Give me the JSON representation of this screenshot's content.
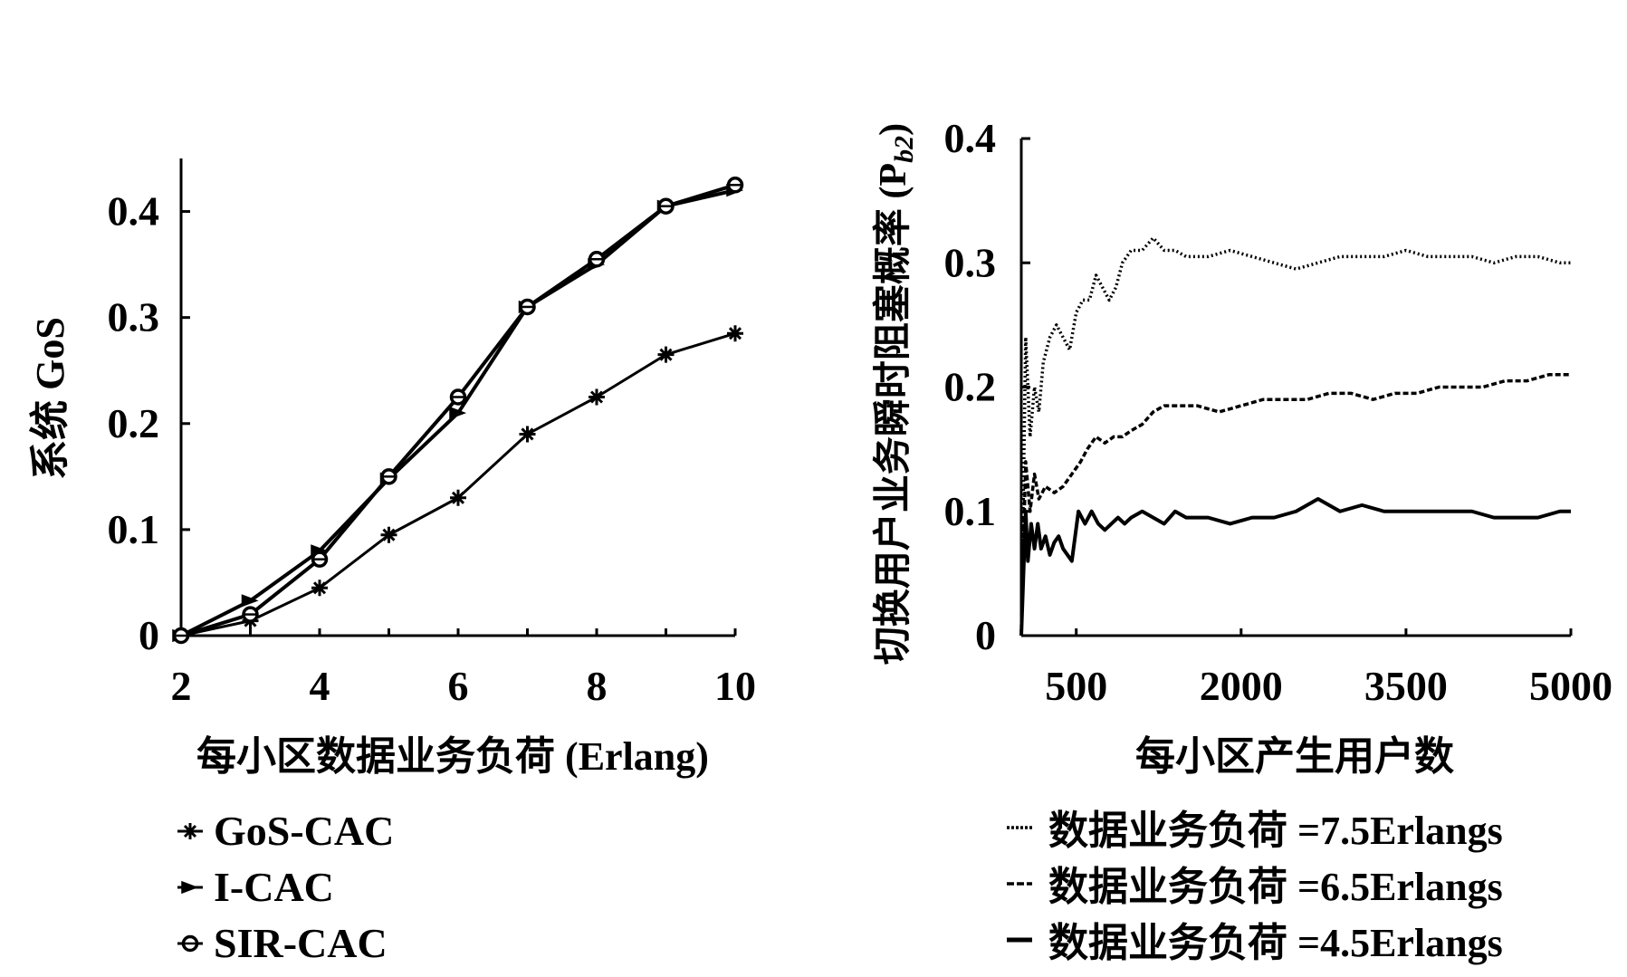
{
  "chart_data": [
    {
      "type": "line",
      "title": "",
      "xlabel": "每小区数据业务负荷 (Erlang)",
      "ylabel": "系统 GoS",
      "x": [
        2,
        3,
        4,
        5,
        6,
        7,
        8,
        9,
        10
      ],
      "xticks": [
        2,
        4,
        6,
        8,
        10
      ],
      "xtick_labels": [
        "2",
        "4",
        "6",
        "8",
        "10"
      ],
      "yticks": [
        0,
        0.1,
        0.2,
        0.3,
        0.4
      ],
      "ytick_labels": [
        "0",
        "0.1",
        "0.2",
        "0.3",
        "0.4"
      ],
      "xlim": [
        2,
        10
      ],
      "ylim": [
        0,
        0.45
      ],
      "grid": false,
      "legend": "bottom",
      "series": [
        {
          "name": "GoS-CAC",
          "marker": "star",
          "values": [
            0,
            0.014,
            0.045,
            0.095,
            0.13,
            0.19,
            0.225,
            0.265,
            0.285
          ]
        },
        {
          "name": "I-CAC",
          "marker": "arrow",
          "values": [
            0,
            0.033,
            0.08,
            0.148,
            0.21,
            0.31,
            0.35,
            0.405,
            0.42
          ]
        },
        {
          "name": "SIR-CAC",
          "marker": "circle",
          "values": [
            0,
            0.02,
            0.072,
            0.15,
            0.225,
            0.31,
            0.355,
            0.405,
            0.425
          ]
        }
      ]
    },
    {
      "type": "line",
      "title": "",
      "xlabel": "每小区产生用户数",
      "ylabel": "切换用户业务瞬时阻塞概率 (P",
      "ylabel_sub": "b2",
      "ylabel_close": ")",
      "xticks": [
        500,
        2000,
        3500,
        5000
      ],
      "xtick_labels": [
        "500",
        "2000",
        "3500",
        "5000"
      ],
      "yticks": [
        0,
        0.1,
        0.2,
        0.3,
        0.4
      ],
      "ytick_labels": [
        "0",
        "0.1",
        "0.2",
        "0.3",
        "0.4"
      ],
      "xlim": [
        0,
        5000
      ],
      "ylim": [
        0,
        0.4
      ],
      "grid": false,
      "legend": "bottom",
      "series": [
        {
          "name": "数据业务负荷 =7.5Erlangs",
          "style": "dotted",
          "points": [
            [
              0,
              0
            ],
            [
              40,
              0.24
            ],
            [
              80,
              0.16
            ],
            [
              120,
              0.2
            ],
            [
              160,
              0.18
            ],
            [
              200,
              0.22
            ],
            [
              260,
              0.24
            ],
            [
              320,
              0.25
            ],
            [
              380,
              0.24
            ],
            [
              440,
              0.23
            ],
            [
              500,
              0.26
            ],
            [
              560,
              0.27
            ],
            [
              620,
              0.27
            ],
            [
              680,
              0.29
            ],
            [
              740,
              0.28
            ],
            [
              800,
              0.27
            ],
            [
              860,
              0.28
            ],
            [
              920,
              0.3
            ],
            [
              1000,
              0.31
            ],
            [
              1100,
              0.31
            ],
            [
              1200,
              0.32
            ],
            [
              1300,
              0.31
            ],
            [
              1400,
              0.31
            ],
            [
              1500,
              0.305
            ],
            [
              1700,
              0.305
            ],
            [
              1900,
              0.31
            ],
            [
              2100,
              0.305
            ],
            [
              2300,
              0.3
            ],
            [
              2500,
              0.295
            ],
            [
              2700,
              0.3
            ],
            [
              2900,
              0.305
            ],
            [
              3100,
              0.305
            ],
            [
              3300,
              0.305
            ],
            [
              3500,
              0.31
            ],
            [
              3700,
              0.305
            ],
            [
              3900,
              0.305
            ],
            [
              4100,
              0.305
            ],
            [
              4300,
              0.3
            ],
            [
              4500,
              0.305
            ],
            [
              4700,
              0.305
            ],
            [
              4900,
              0.3
            ],
            [
              5000,
              0.3
            ]
          ]
        },
        {
          "name": "数据业务负荷 =6.5Erlangs",
          "style": "dashed",
          "points": [
            [
              0,
              0
            ],
            [
              40,
              0.14
            ],
            [
              80,
              0.1
            ],
            [
              120,
              0.13
            ],
            [
              160,
              0.11
            ],
            [
              220,
              0.12
            ],
            [
              300,
              0.115
            ],
            [
              380,
              0.12
            ],
            [
              460,
              0.13
            ],
            [
              540,
              0.14
            ],
            [
              600,
              0.15
            ],
            [
              680,
              0.16
            ],
            [
              760,
              0.155
            ],
            [
              840,
              0.16
            ],
            [
              920,
              0.16
            ],
            [
              1000,
              0.165
            ],
            [
              1100,
              0.17
            ],
            [
              1200,
              0.18
            ],
            [
              1300,
              0.185
            ],
            [
              1450,
              0.185
            ],
            [
              1600,
              0.185
            ],
            [
              1800,
              0.18
            ],
            [
              2000,
              0.185
            ],
            [
              2200,
              0.19
            ],
            [
              2400,
              0.19
            ],
            [
              2600,
              0.19
            ],
            [
              2800,
              0.195
            ],
            [
              3000,
              0.195
            ],
            [
              3200,
              0.19
            ],
            [
              3400,
              0.195
            ],
            [
              3600,
              0.195
            ],
            [
              3800,
              0.2
            ],
            [
              4000,
              0.2
            ],
            [
              4200,
              0.2
            ],
            [
              4400,
              0.205
            ],
            [
              4600,
              0.205
            ],
            [
              4800,
              0.21
            ],
            [
              5000,
              0.21
            ]
          ]
        },
        {
          "name": "数据业务负荷 =4.5Erlangs",
          "style": "solid",
          "points": [
            [
              0,
              0
            ],
            [
              40,
              0.1
            ],
            [
              60,
              0.06
            ],
            [
              90,
              0.09
            ],
            [
              120,
              0.07
            ],
            [
              150,
              0.09
            ],
            [
              180,
              0.07
            ],
            [
              220,
              0.08
            ],
            [
              260,
              0.065
            ],
            [
              300,
              0.075
            ],
            [
              340,
              0.08
            ],
            [
              380,
              0.07
            ],
            [
              420,
              0.065
            ],
            [
              460,
              0.06
            ],
            [
              520,
              0.1
            ],
            [
              580,
              0.09
            ],
            [
              640,
              0.1
            ],
            [
              700,
              0.09
            ],
            [
              760,
              0.085
            ],
            [
              820,
              0.09
            ],
            [
              880,
              0.095
            ],
            [
              940,
              0.09
            ],
            [
              1000,
              0.095
            ],
            [
              1100,
              0.1
            ],
            [
              1200,
              0.095
            ],
            [
              1300,
              0.09
            ],
            [
              1400,
              0.1
            ],
            [
              1500,
              0.095
            ],
            [
              1700,
              0.095
            ],
            [
              1900,
              0.09
            ],
            [
              2100,
              0.095
            ],
            [
              2300,
              0.095
            ],
            [
              2500,
              0.1
            ],
            [
              2700,
              0.11
            ],
            [
              2900,
              0.1
            ],
            [
              3100,
              0.105
            ],
            [
              3300,
              0.1
            ],
            [
              3500,
              0.1
            ],
            [
              3700,
              0.1
            ],
            [
              3900,
              0.1
            ],
            [
              4100,
              0.1
            ],
            [
              4300,
              0.095
            ],
            [
              4500,
              0.095
            ],
            [
              4700,
              0.095
            ],
            [
              4900,
              0.1
            ],
            [
              5000,
              0.1
            ]
          ]
        }
      ]
    }
  ]
}
